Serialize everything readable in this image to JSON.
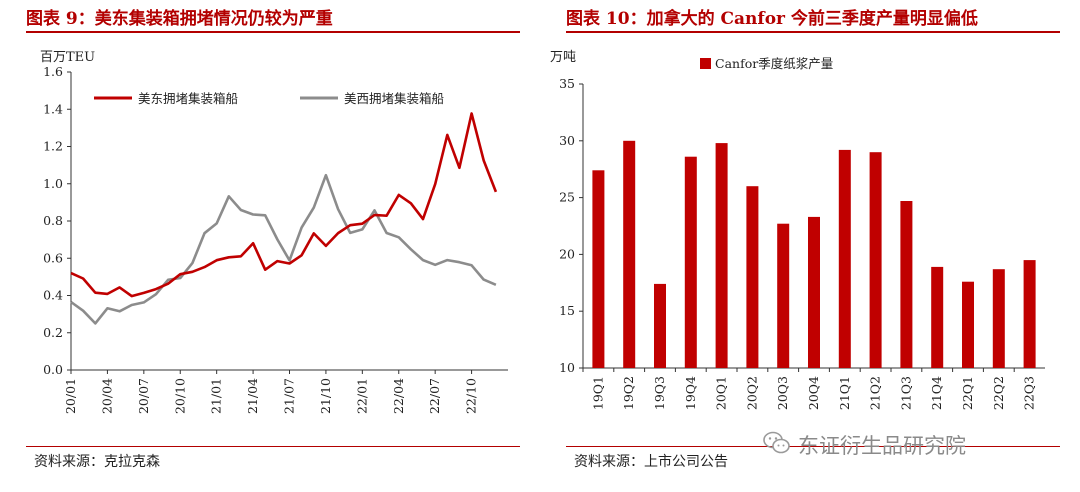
{
  "left": {
    "title": "图表 9：美东集装箱拥堵情况仍较为严重",
    "unit": "百万TEU",
    "source": "资料来源：克拉克森"
  },
  "right": {
    "title": "图表 10：加拿大的 Canfor 今前三季度产量明显偏低",
    "unit": "万吨",
    "source": "资料来源：上市公司公告"
  },
  "watermark": "东证衍生品研究院",
  "colors": {
    "red": "#c00000",
    "gray": "#8c8c8c",
    "title": "#b30000"
  },
  "chart_data": [
    {
      "type": "line",
      "ylabel": "百万TEU",
      "ylim": [
        0.0,
        1.6
      ],
      "yticks": [
        "0.0",
        "0.2",
        "0.4",
        "0.6",
        "0.8",
        "1.0",
        "1.2",
        "1.4",
        "1.6"
      ],
      "xticks": [
        "20/01",
        "20/04",
        "20/07",
        "20/10",
        "21/01",
        "21/04",
        "21/07",
        "21/10",
        "22/01",
        "22/04",
        "22/07",
        "22/10"
      ],
      "legend_position": "top-left",
      "series": [
        {
          "name": "美东拥堵集装箱船",
          "color": "#c00000",
          "x": [
            "20/01",
            "20/02",
            "20/03",
            "20/04",
            "20/05",
            "20/06",
            "20/07",
            "20/08",
            "20/09",
            "20/10",
            "20/11",
            "20/12",
            "21/01",
            "21/02",
            "21/03",
            "21/04",
            "21/05",
            "21/06",
            "21/07",
            "21/08",
            "21/09",
            "21/10",
            "21/11",
            "21/12",
            "22/01",
            "22/02",
            "22/03",
            "22/04",
            "22/05",
            "22/06",
            "22/07",
            "22/08",
            "22/09",
            "22/10",
            "22/11",
            "22/12"
          ],
          "values": [
            0.52,
            0.48,
            0.43,
            0.4,
            0.44,
            0.41,
            0.4,
            0.44,
            0.47,
            0.5,
            0.54,
            0.55,
            0.58,
            0.62,
            0.6,
            0.68,
            0.55,
            0.57,
            0.58,
            0.62,
            0.72,
            0.68,
            0.73,
            0.77,
            0.8,
            0.82,
            0.83,
            0.95,
            0.88,
            0.82,
            1.0,
            1.25,
            1.1,
            1.37,
            1.12,
            0.97
          ]
        },
        {
          "name": "美西拥堵集装箱船",
          "color": "#8c8c8c",
          "x": [
            "20/01",
            "20/02",
            "20/03",
            "20/04",
            "20/05",
            "20/06",
            "20/07",
            "20/08",
            "20/09",
            "20/10",
            "20/11",
            "20/12",
            "21/01",
            "21/02",
            "21/03",
            "21/04",
            "21/05",
            "21/06",
            "21/07",
            "21/08",
            "21/09",
            "21/10",
            "21/11",
            "21/12",
            "22/01",
            "22/02",
            "22/03",
            "22/04",
            "22/05",
            "22/06",
            "22/07",
            "22/08",
            "22/09",
            "22/10",
            "22/11",
            "22/12"
          ],
          "values": [
            0.35,
            0.33,
            0.25,
            0.32,
            0.33,
            0.34,
            0.36,
            0.42,
            0.47,
            0.5,
            0.58,
            0.72,
            0.8,
            0.93,
            0.85,
            0.85,
            0.82,
            0.7,
            0.6,
            0.75,
            0.88,
            1.05,
            0.85,
            0.75,
            0.75,
            0.85,
            0.75,
            0.7,
            0.65,
            0.6,
            0.55,
            0.6,
            0.58,
            0.55,
            0.5,
            0.45
          ]
        }
      ]
    },
    {
      "type": "bar",
      "ylabel": "万吨",
      "ylim": [
        10,
        35
      ],
      "yticks": [
        "10",
        "15",
        "20",
        "25",
        "30",
        "35"
      ],
      "legend_position": "top",
      "series": [
        {
          "name": "Canfor季度纸浆产量",
          "color": "#c00000",
          "values": [
            27.4,
            30.0,
            17.4,
            28.6,
            29.8,
            26.0,
            22.7,
            23.3,
            29.2,
            29.0,
            24.7,
            18.9,
            17.6,
            18.7,
            19.5
          ]
        }
      ],
      "categories": [
        "19Q1",
        "19Q2",
        "19Q3",
        "19Q4",
        "20Q1",
        "20Q2",
        "20Q3",
        "20Q4",
        "21Q1",
        "21Q2",
        "21Q3",
        "21Q4",
        "22Q1",
        "22Q2",
        "22Q3"
      ]
    }
  ]
}
